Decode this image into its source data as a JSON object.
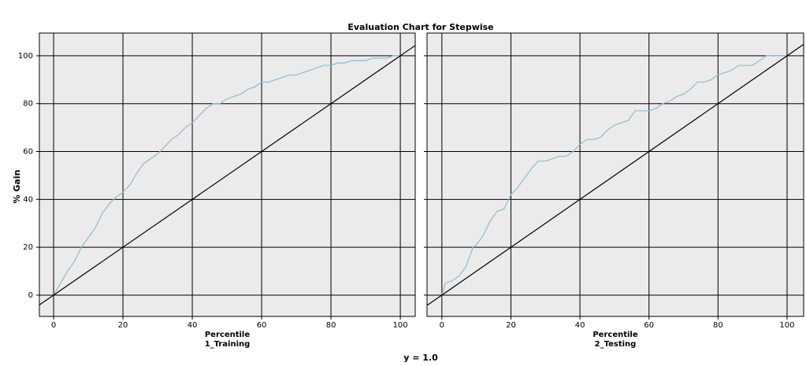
{
  "title": "Evaluation Chart for Stepwise",
  "y_label": "% Gain",
  "footer": "y = 1.0",
  "chart_data": [
    {
      "type": "line",
      "x_label": "Percentile",
      "subtitle": "1_Training",
      "xlim": [
        -4.1,
        104.3
      ],
      "ylim": [
        -8.9,
        109.5
      ],
      "xticks": [
        0,
        20,
        40,
        60,
        80,
        100
      ],
      "yticks": [
        0,
        20,
        40,
        60,
        80,
        100
      ],
      "grid": true,
      "series": [
        {
          "color": "#8fbcd4",
          "x": [
            0,
            2,
            4,
            6,
            8,
            10,
            12,
            14,
            16,
            18,
            20,
            22,
            24,
            26,
            28,
            30,
            32,
            34,
            36,
            38,
            40,
            42,
            44,
            46,
            48,
            50,
            52,
            54,
            56,
            58,
            60,
            62,
            64,
            66,
            68,
            70,
            72,
            74,
            76,
            78,
            80,
            82,
            84,
            86,
            88,
            90,
            92,
            94,
            96,
            98,
            100
          ],
          "values": [
            0,
            5,
            10,
            14,
            20,
            24,
            28,
            34,
            38,
            41,
            43,
            46,
            51,
            55,
            57,
            59,
            62,
            65,
            67,
            70,
            72,
            75,
            78,
            80,
            80,
            82,
            83,
            84,
            86,
            87,
            89,
            89,
            90,
            91,
            92,
            92,
            93,
            94,
            95,
            96,
            96,
            97,
            97,
            98,
            98,
            98,
            99,
            99,
            99,
            100,
            100
          ]
        },
        {
          "color": "#000000",
          "x": [
            -4.1,
            104.3
          ],
          "values": [
            -4.1,
            104.3
          ]
        }
      ]
    },
    {
      "type": "line",
      "x_label": "Percentile",
      "subtitle": "2_Testing",
      "xlim": [
        -4.3,
        104.8
      ],
      "ylim": [
        -8.9,
        109.5
      ],
      "xticks": [
        0,
        20,
        40,
        60,
        80,
        100
      ],
      "yticks": [
        0,
        20,
        40,
        60,
        80,
        100
      ],
      "grid": true,
      "series": [
        {
          "color": "#8fbcd4",
          "x": [
            0,
            1,
            3,
            5,
            7,
            9,
            10,
            12,
            14,
            16,
            18,
            20,
            22,
            24,
            26,
            28,
            30,
            32,
            34,
            36,
            38,
            40,
            42,
            44,
            46,
            48,
            50,
            52,
            54,
            56,
            58,
            60,
            62,
            64,
            66,
            68,
            70,
            72,
            74,
            76,
            78,
            80,
            82,
            84,
            86,
            88,
            90,
            92,
            94,
            100
          ],
          "values": [
            0,
            5,
            6,
            8,
            12,
            20,
            21,
            25,
            31,
            35,
            36,
            42,
            45,
            49,
            53,
            56,
            56,
            57,
            58,
            58,
            60,
            63,
            65,
            65,
            66,
            69,
            71,
            72,
            73,
            77,
            77,
            77,
            78,
            80,
            81,
            83,
            84,
            86,
            89,
            89,
            90,
            92,
            93,
            94,
            96,
            96,
            96,
            98,
            100,
            100
          ]
        },
        {
          "color": "#000000",
          "x": [
            -4.3,
            104.8
          ],
          "values": [
            -4.3,
            104.8
          ]
        }
      ]
    }
  ]
}
